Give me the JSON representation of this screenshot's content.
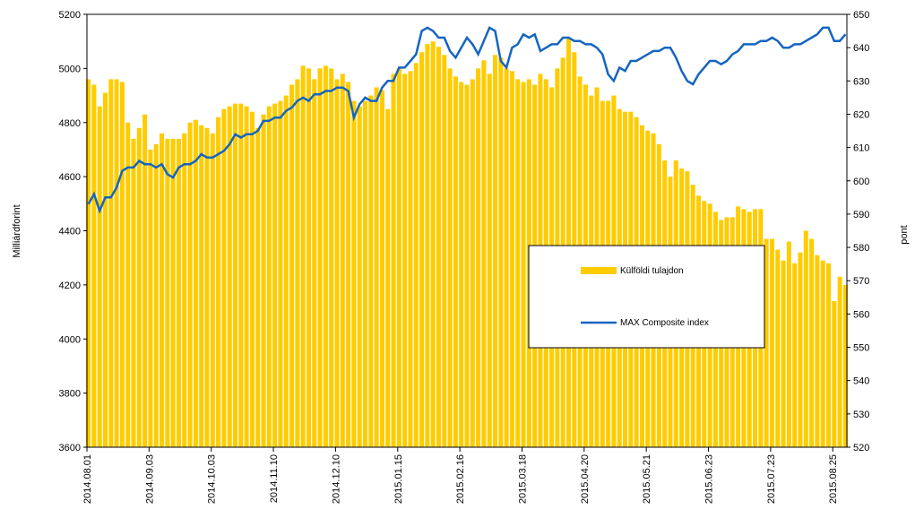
{
  "chart_data": {
    "type": "bar_line",
    "y_label": "Milliárdforint",
    "y2_label": "pont",
    "categories": [
      "2014.08.01",
      null,
      null,
      null,
      null,
      null,
      null,
      null,
      null,
      null,
      null,
      "2014.09.03",
      null,
      null,
      null,
      null,
      null,
      null,
      null,
      null,
      null,
      null,
      "2014.10.03",
      null,
      null,
      null,
      null,
      null,
      null,
      null,
      null,
      null,
      null,
      "2014.11.10",
      null,
      null,
      null,
      null,
      null,
      null,
      null,
      null,
      null,
      null,
      "2014.12.10",
      null,
      null,
      null,
      null,
      null,
      null,
      null,
      null,
      null,
      null,
      "2015.01.15",
      null,
      null,
      null,
      null,
      null,
      null,
      null,
      null,
      null,
      null,
      "2015.02.16",
      null,
      null,
      null,
      null,
      null,
      null,
      null,
      null,
      null,
      null,
      "2015.03.18",
      null,
      null,
      null,
      null,
      null,
      null,
      null,
      null,
      null,
      null,
      "2015.04.20",
      null,
      null,
      null,
      null,
      null,
      null,
      null,
      null,
      null,
      null,
      "2015.05.21",
      null,
      null,
      null,
      null,
      null,
      null,
      null,
      null,
      null,
      null,
      "2015.06.23",
      null,
      null,
      null,
      null,
      null,
      null,
      null,
      null,
      null,
      null,
      "2015.07.23",
      null,
      null,
      null,
      null,
      null,
      null,
      null,
      null,
      null,
      null,
      "2015.08.25",
      null,
      null
    ],
    "series": [
      {
        "name": "Külföldi tulajdon",
        "kind": "bar",
        "color": "#ffcc00",
        "values": [
          4960,
          4940,
          4860,
          4910,
          4960,
          4960,
          4950,
          4800,
          4740,
          4780,
          4830,
          4700,
          4720,
          4760,
          4740,
          4740,
          4740,
          4760,
          4800,
          4810,
          4790,
          4780,
          4760,
          4820,
          4850,
          4860,
          4870,
          4870,
          4860,
          4840,
          4780,
          4830,
          4860,
          4870,
          4880,
          4900,
          4940,
          4960,
          5010,
          5000,
          4960,
          5000,
          5010,
          5000,
          4960,
          4980,
          4950,
          4880,
          4860,
          4880,
          4900,
          4930,
          4920,
          4850,
          4980,
          5000,
          4980,
          4990,
          5020,
          5060,
          5090,
          5100,
          5080,
          5050,
          5000,
          4970,
          4950,
          4940,
          4960,
          5000,
          5030,
          4980,
          5050,
          5040,
          5000,
          4990,
          4960,
          4950,
          4960,
          4940,
          4980,
          4960,
          4930,
          5000,
          5040,
          5110,
          5060,
          4970,
          4940,
          4900,
          4930,
          4880,
          4880,
          4900,
          4850,
          4840,
          4840,
          4820,
          4790,
          4770,
          4760,
          4720,
          4660,
          4600,
          4660,
          4630,
          4620,
          4570,
          4530,
          4510,
          4500,
          4470,
          4440,
          4450,
          4450,
          4490,
          4480,
          4470,
          4480,
          4480,
          4370,
          4370,
          4330,
          4290,
          4360,
          4280,
          4320,
          4400,
          4370,
          4310,
          4290,
          4280,
          4140,
          4230,
          4200
        ]
      },
      {
        "name": "MAX Composite index",
        "kind": "line",
        "axis": "y2",
        "color": "#1565c0",
        "values": [
          593,
          596,
          591,
          595,
          595,
          598,
          603,
          604,
          604,
          606,
          605,
          605,
          604,
          605,
          602,
          601,
          604,
          605,
          605,
          606,
          608,
          607,
          607,
          608,
          609,
          611,
          614,
          613,
          614,
          614,
          615,
          618,
          618,
          619,
          619,
          621,
          622,
          624,
          625,
          624,
          626,
          626,
          627,
          627,
          628,
          628,
          627,
          619,
          623,
          625,
          624,
          624,
          628,
          630,
          630,
          634,
          634,
          636,
          638,
          645,
          646,
          645,
          643,
          643,
          639,
          637,
          640,
          643,
          641,
          638,
          642,
          646,
          645,
          636,
          634,
          640,
          641,
          644,
          643,
          644,
          639,
          640,
          641,
          641,
          643,
          643,
          642,
          642,
          641,
          641,
          640,
          638,
          632,
          630,
          634,
          633,
          636,
          636,
          637,
          638,
          639,
          639,
          640,
          640,
          637,
          633,
          630,
          629,
          632,
          634,
          636,
          636,
          635,
          636,
          638,
          639,
          641,
          641,
          641,
          642,
          642,
          643,
          642,
          640,
          640,
          641,
          641,
          642,
          643,
          644,
          646,
          646,
          642,
          642,
          644
        ]
      }
    ],
    "ylim": [
      3600,
      5200
    ],
    "yticks": [
      3600,
      3800,
      4000,
      4200,
      4400,
      4600,
      4800,
      5000,
      5200
    ],
    "y2lim": [
      520,
      650
    ],
    "y2ticks": [
      520,
      530,
      540,
      550,
      560,
      570,
      580,
      590,
      600,
      610,
      620,
      630,
      640,
      650
    ]
  }
}
